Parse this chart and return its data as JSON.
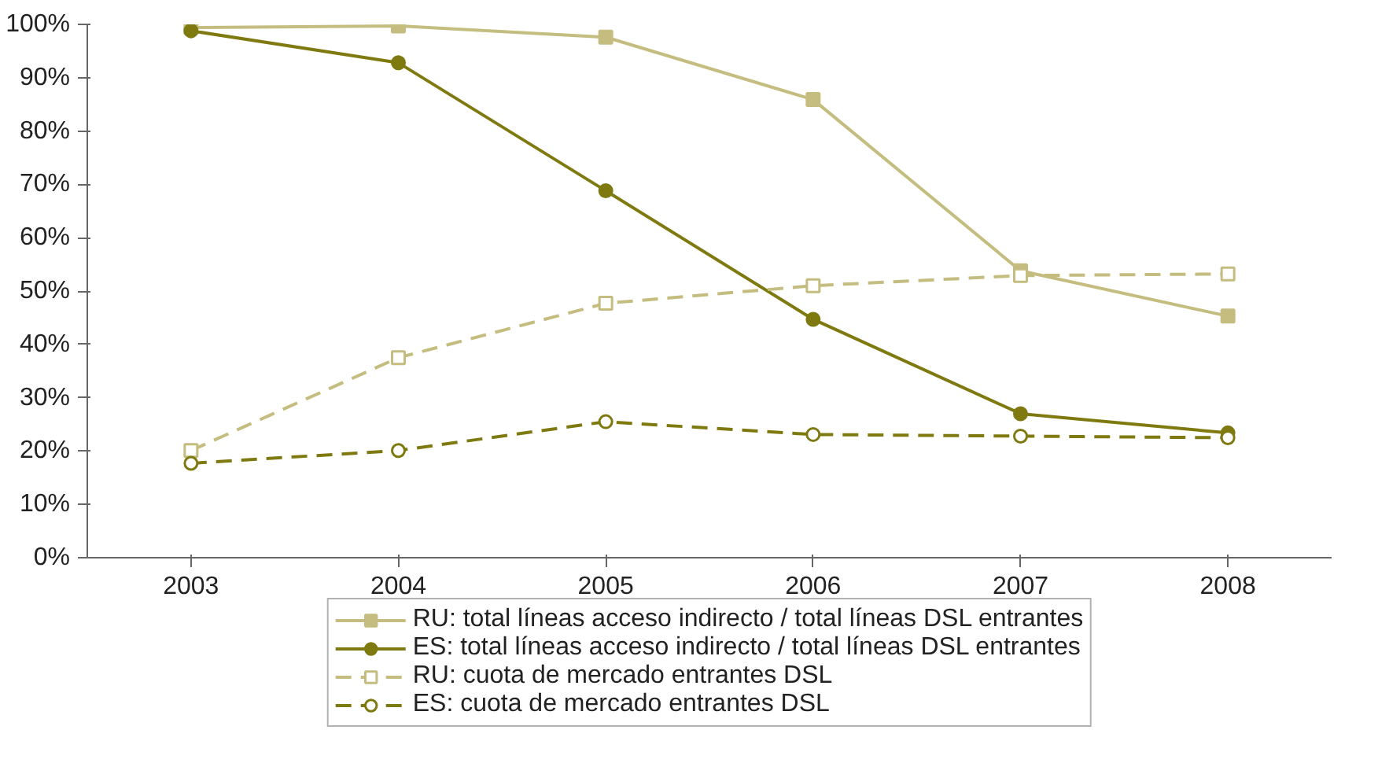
{
  "chart_data": {
    "type": "line",
    "categories": [
      "2003",
      "2004",
      "2005",
      "2006",
      "2007",
      "2008"
    ],
    "ylim": [
      0,
      100
    ],
    "yticks": [
      {
        "value": 0,
        "label": "0%"
      },
      {
        "value": 10,
        "label": "10%"
      },
      {
        "value": 20,
        "label": "20%"
      },
      {
        "value": 30,
        "label": "30%"
      },
      {
        "value": 40,
        "label": "40%"
      },
      {
        "value": 50,
        "label": "50%"
      },
      {
        "value": 60,
        "label": "60%"
      },
      {
        "value": 70,
        "label": "70%"
      },
      {
        "value": 80,
        "label": "80%"
      },
      {
        "value": 90,
        "label": "90%"
      },
      {
        "value": 100,
        "label": "100%"
      }
    ],
    "grid": false,
    "legend": "bottom",
    "series": [
      {
        "name": "RU: total líneas acceso indirecto / total líneas DSL entrantes",
        "color": "#c4bd7f",
        "marker": "square",
        "line_style": "solid",
        "values": [
          99.4,
          99.7,
          97.6,
          85.9,
          53.8,
          45.3
        ]
      },
      {
        "name": "ES: total líneas acceso indirecto / total líneas DSL entrantes",
        "color": "#7f7a10",
        "marker": "circle",
        "line_style": "solid",
        "values": [
          98.8,
          92.8,
          68.8,
          44.7,
          27,
          23.4
        ]
      },
      {
        "name": "RU: cuota de mercado entrantes DSL",
        "color": "#c4bd7f",
        "marker": "square",
        "line_style": "dashed",
        "values": [
          20.1,
          37.5,
          47.7,
          51,
          52.9,
          53.2
        ]
      },
      {
        "name": "ES: cuota de mercado entrantes DSL",
        "color": "#7f7a10",
        "marker": "circle",
        "line_style": "dashed",
        "values": [
          17.7,
          20.1,
          25.5,
          23.1,
          22.8,
          22.5
        ]
      }
    ]
  }
}
